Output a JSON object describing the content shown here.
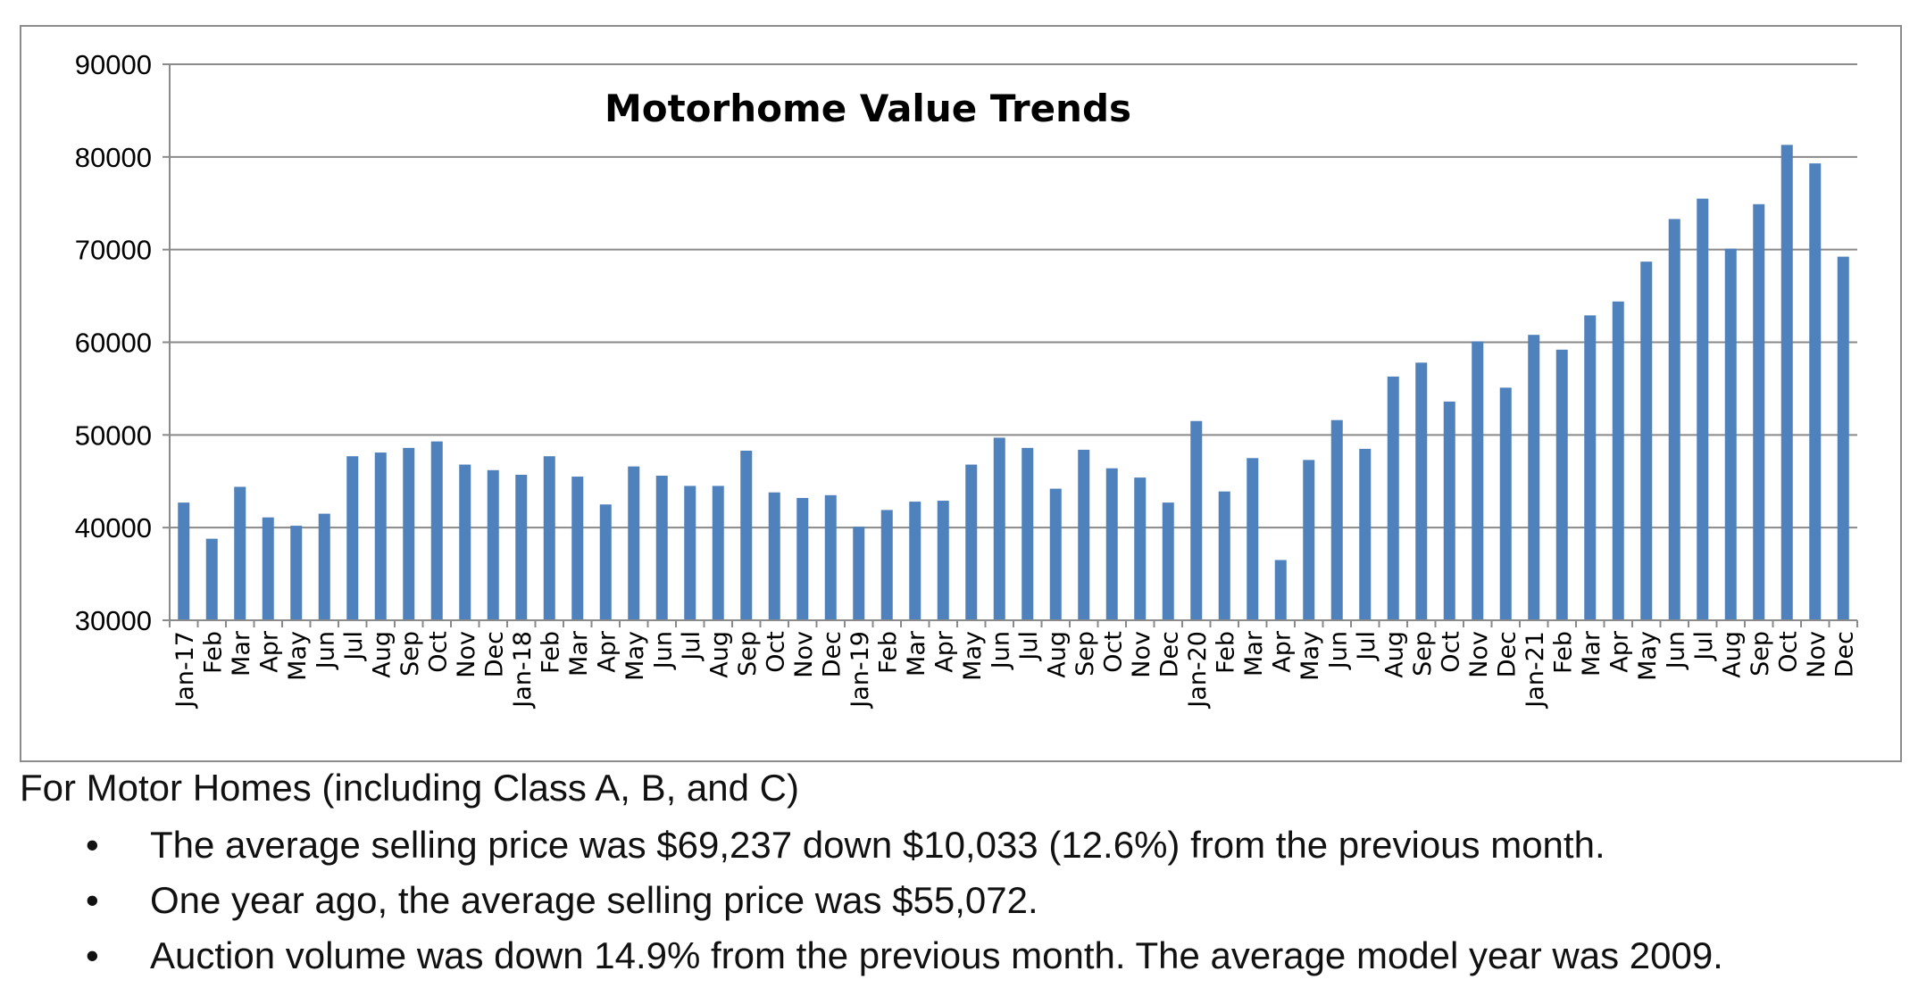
{
  "chart_data": {
    "type": "bar",
    "title": "Motorhome Value Trends",
    "xlabel": "",
    "ylabel": "",
    "ylim": [
      30000,
      90000
    ],
    "yticks": [
      30000,
      40000,
      50000,
      60000,
      70000,
      80000,
      90000
    ],
    "grid": true,
    "legend": "none",
    "bar_color": "#4f81bd",
    "categories": [
      "Jan-17",
      "Feb",
      "Mar",
      "Apr",
      "May",
      "Jun",
      "Jul",
      "Aug",
      "Sep",
      "Oct",
      "Nov",
      "Dec",
      "Jan-18",
      "Feb",
      "Mar",
      "Apr",
      "May",
      "Jun",
      "Jul",
      "Aug",
      "Sep",
      "Oct",
      "Nov",
      "Dec",
      "Jan-19",
      "Feb",
      "Mar",
      "Apr",
      "May",
      "Jun",
      "Jul",
      "Aug",
      "Sep",
      "Oct",
      "Nov",
      "Dec",
      "Jan-20",
      "Feb",
      "Mar",
      "Apr",
      "May",
      "Jun",
      "Jul",
      "Aug",
      "Sep",
      "Oct",
      "Nov",
      "Dec",
      "Jan-21",
      "Feb",
      "Mar",
      "Apr",
      "May",
      "Jun",
      "Jul",
      "Aug",
      "Sep",
      "Oct",
      "Nov",
      "Dec"
    ],
    "values": [
      42700,
      38800,
      44400,
      41100,
      40200,
      41500,
      47700,
      48100,
      48600,
      49300,
      46800,
      46200,
      45700,
      47700,
      45500,
      42500,
      46600,
      45600,
      44500,
      44500,
      48300,
      43800,
      43200,
      43500,
      40100,
      41900,
      42800,
      42900,
      46800,
      49700,
      48600,
      44200,
      48400,
      46400,
      45400,
      42700,
      51500,
      43900,
      47500,
      36500,
      47300,
      51600,
      48500,
      56300,
      57800,
      53600,
      60100,
      55100,
      60800,
      59200,
      62900,
      64400,
      68700,
      73300,
      75500,
      70100,
      74900,
      81300,
      79300,
      69237
    ]
  },
  "notes": {
    "intro": "For Motor Homes (including Class A, B, and C)",
    "bullet_glyph": "•",
    "bullets": [
      "The average selling price was $69,237 down $10,033 (12.6%) from the previous month.",
      "One year ago, the average selling price was $55,072.",
      "Auction volume was down 14.9% from the previous month.  The average model year was 2009."
    ]
  }
}
